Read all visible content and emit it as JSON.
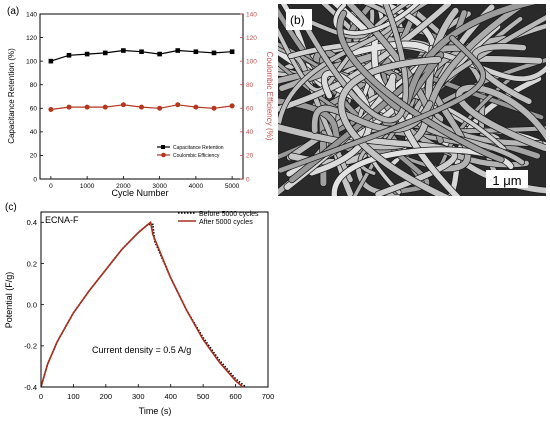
{
  "panel_a": {
    "label": "(a)",
    "xlabel": "Cycle Number",
    "ylabel_left": "Capacitance Retention (%)",
    "ylabel_right": "Coulombic Efficiency (%)",
    "xticks": [
      "0",
      "1000",
      "2000",
      "3000",
      "4000",
      "5000"
    ],
    "yticks_left": [
      "0",
      "20",
      "40",
      "60",
      "80",
      "100",
      "120",
      "140"
    ],
    "yticks_right": [
      "0",
      "20",
      "40",
      "60",
      "80",
      "100",
      "120",
      "140"
    ],
    "legend": [
      "Capacitance Retention",
      "Coulombic Efficiency"
    ]
  },
  "panel_b": {
    "label": "(b)",
    "scale_bar": "1 μm"
  },
  "panel_c": {
    "label": "(c)",
    "inner_title": "ECNA-F",
    "xlabel": "Time (s)",
    "ylabel": "Potential (F/g)",
    "xticks": [
      "0",
      "100",
      "200",
      "300",
      "400",
      "500",
      "600",
      "700"
    ],
    "yticks": [
      "-0.4",
      "-0.2",
      "0.0",
      "0.2",
      "0.4"
    ],
    "legend": [
      "Before 5000 cycles",
      "After 5000 cycles"
    ],
    "annotation": "Current density = 0.5 A/g"
  },
  "colors": {
    "retention": "#000000",
    "efficiency": "#b5351f",
    "right_axis": "#c0504d",
    "after_line": "#a8301f",
    "sem_bg": "#2a2a2a"
  },
  "chart_data": [
    {
      "type": "scatter",
      "title": "",
      "xlabel": "Cycle Number",
      "ylabel": "Capacitance Retention (%)",
      "y2label": "Coulombic Efficiency (%)",
      "xlim": [
        -300,
        5300
      ],
      "ylim": [
        0,
        140
      ],
      "y2lim": [
        0,
        140
      ],
      "series": [
        {
          "name": "Capacitance Retention",
          "axis": "left",
          "x": [
            0,
            500,
            1000,
            1500,
            2000,
            2500,
            3000,
            3500,
            4000,
            4500,
            5000
          ],
          "y": [
            100,
            105,
            106,
            107,
            109,
            108,
            106,
            109,
            108,
            107,
            108
          ]
        },
        {
          "name": "Coulombic Efficiency",
          "axis": "left",
          "x": [
            0,
            500,
            1000,
            1500,
            2000,
            2500,
            3000,
            3500,
            4000,
            4500,
            5000
          ],
          "y": [
            59,
            61,
            61,
            61,
            63,
            61,
            60,
            63,
            61,
            60,
            62
          ]
        }
      ]
    },
    {
      "type": "line",
      "title": "",
      "xlabel": "Time (s)",
      "ylabel": "Potential (F/g)",
      "xlim": [
        0,
        700
      ],
      "ylim": [
        -0.4,
        0.45
      ],
      "series": [
        {
          "name": "Before 5000 cycles",
          "x": [
            0,
            20,
            50,
            100,
            150,
            200,
            250,
            300,
            330,
            345,
            350,
            400,
            450,
            500,
            550,
            600,
            640
          ],
          "y": [
            -0.4,
            -0.29,
            -0.18,
            -0.04,
            0.07,
            0.17,
            0.27,
            0.35,
            0.39,
            0.39,
            0.31,
            0.13,
            -0.03,
            -0.16,
            -0.27,
            -0.36,
            -0.41
          ]
        },
        {
          "name": "After 5000 cycles",
          "x": [
            0,
            20,
            50,
            100,
            150,
            200,
            250,
            300,
            330,
            338,
            345,
            400,
            450,
            500,
            550,
            600,
            630
          ],
          "y": [
            -0.4,
            -0.29,
            -0.18,
            -0.04,
            0.07,
            0.17,
            0.27,
            0.35,
            0.39,
            0.4,
            0.34,
            0.13,
            -0.03,
            -0.17,
            -0.28,
            -0.37,
            -0.41
          ]
        }
      ]
    }
  ]
}
